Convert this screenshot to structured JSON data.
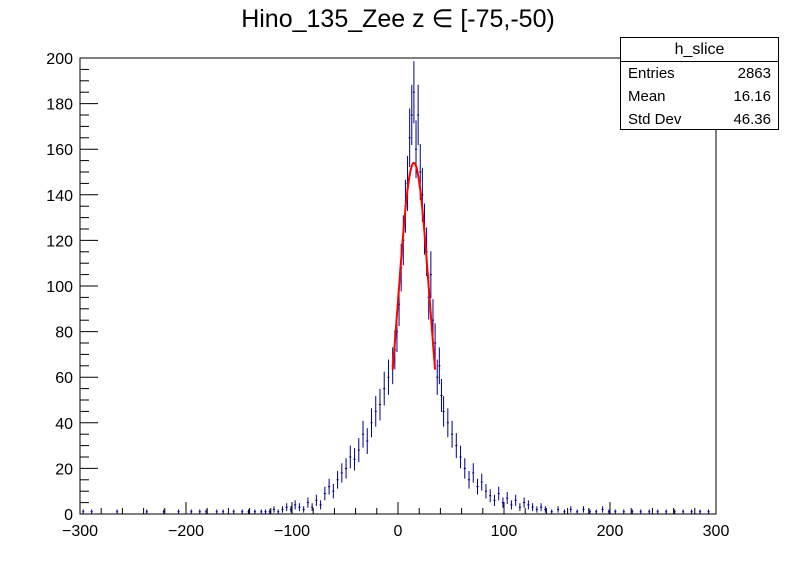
{
  "chart_data": {
    "type": "histogram",
    "title": "Hino_135_Zee z  ∈ [-75,-50)",
    "xlabel": "",
    "ylabel": "",
    "xlim": [
      -300,
      300
    ],
    "ylim": [
      0,
      200
    ],
    "x_ticks": [
      -300,
      -200,
      -100,
      0,
      100,
      200,
      300
    ],
    "y_ticks": [
      0,
      20,
      40,
      60,
      80,
      100,
      120,
      140,
      160,
      180,
      200
    ],
    "grid": false,
    "colors": {
      "histogram": "#000080",
      "fit": "#ff0000"
    },
    "bin_width": 2,
    "fit": {
      "type": "gaussian",
      "amplitude": 154,
      "mean": 15,
      "sigma": 15,
      "x_range": [
        -5,
        35
      ]
    },
    "bins": [
      {
        "x": -297,
        "y": 1
      },
      {
        "x": -289,
        "y": 1
      },
      {
        "x": -265,
        "y": 1
      },
      {
        "x": -237,
        "y": 1
      },
      {
        "x": -221,
        "y": 1
      },
      {
        "x": -207,
        "y": 1
      },
      {
        "x": -195,
        "y": 1
      },
      {
        "x": -187,
        "y": 1
      },
      {
        "x": -181,
        "y": 1
      },
      {
        "x": -171,
        "y": 1
      },
      {
        "x": -165,
        "y": 1
      },
      {
        "x": -155,
        "y": 1
      },
      {
        "x": -147,
        "y": 1
      },
      {
        "x": -141,
        "y": 1
      },
      {
        "x": -135,
        "y": 1
      },
      {
        "x": -129,
        "y": 1
      },
      {
        "x": -125,
        "y": 1
      },
      {
        "x": -121,
        "y": 1
      },
      {
        "x": -117,
        "y": 2
      },
      {
        "x": -113,
        "y": 1
      },
      {
        "x": -109,
        "y": 2
      },
      {
        "x": -105,
        "y": 3
      },
      {
        "x": -101,
        "y": 2
      },
      {
        "x": -97,
        "y": 4
      },
      {
        "x": -93,
        "y": 3
      },
      {
        "x": -89,
        "y": 2
      },
      {
        "x": -85,
        "y": 5
      },
      {
        "x": -81,
        "y": 3
      },
      {
        "x": -77,
        "y": 6
      },
      {
        "x": -73,
        "y": 4
      },
      {
        "x": -69,
        "y": 9
      },
      {
        "x": -65,
        "y": 12
      },
      {
        "x": -61,
        "y": 10
      },
      {
        "x": -57,
        "y": 15
      },
      {
        "x": -53,
        "y": 18
      },
      {
        "x": -49,
        "y": 20
      },
      {
        "x": -45,
        "y": 25
      },
      {
        "x": -41,
        "y": 24
      },
      {
        "x": -37,
        "y": 28
      },
      {
        "x": -33,
        "y": 35
      },
      {
        "x": -29,
        "y": 32
      },
      {
        "x": -25,
        "y": 40
      },
      {
        "x": -21,
        "y": 45
      },
      {
        "x": -17,
        "y": 48
      },
      {
        "x": -13,
        "y": 55
      },
      {
        "x": -9,
        "y": 60
      },
      {
        "x": -5,
        "y": 65
      },
      {
        "x": -3,
        "y": 72
      },
      {
        "x": -1,
        "y": 80
      },
      {
        "x": 1,
        "y": 92
      },
      {
        "x": 3,
        "y": 108
      },
      {
        "x": 5,
        "y": 120
      },
      {
        "x": 7,
        "y": 135
      },
      {
        "x": 9,
        "y": 145
      },
      {
        "x": 11,
        "y": 165
      },
      {
        "x": 13,
        "y": 175
      },
      {
        "x": 15,
        "y": 185
      },
      {
        "x": 17,
        "y": 160
      },
      {
        "x": 19,
        "y": 175
      },
      {
        "x": 21,
        "y": 150
      },
      {
        "x": 23,
        "y": 140
      },
      {
        "x": 25,
        "y": 125
      },
      {
        "x": 27,
        "y": 115
      },
      {
        "x": 29,
        "y": 95
      },
      {
        "x": 31,
        "y": 105
      },
      {
        "x": 33,
        "y": 85
      },
      {
        "x": 35,
        "y": 75
      },
      {
        "x": 37,
        "y": 60
      },
      {
        "x": 39,
        "y": 65
      },
      {
        "x": 41,
        "y": 52
      },
      {
        "x": 43,
        "y": 45
      },
      {
        "x": 47,
        "y": 40
      },
      {
        "x": 51,
        "y": 35
      },
      {
        "x": 55,
        "y": 30
      },
      {
        "x": 59,
        "y": 25
      },
      {
        "x": 63,
        "y": 20
      },
      {
        "x": 67,
        "y": 15
      },
      {
        "x": 71,
        "y": 18
      },
      {
        "x": 75,
        "y": 12
      },
      {
        "x": 79,
        "y": 14
      },
      {
        "x": 83,
        "y": 10
      },
      {
        "x": 87,
        "y": 8
      },
      {
        "x": 91,
        "y": 6
      },
      {
        "x": 95,
        "y": 9
      },
      {
        "x": 99,
        "y": 5
      },
      {
        "x": 103,
        "y": 7
      },
      {
        "x": 107,
        "y": 4
      },
      {
        "x": 111,
        "y": 6
      },
      {
        "x": 115,
        "y": 3
      },
      {
        "x": 119,
        "y": 5
      },
      {
        "x": 123,
        "y": 4
      },
      {
        "x": 127,
        "y": 3
      },
      {
        "x": 131,
        "y": 2
      },
      {
        "x": 135,
        "y": 3
      },
      {
        "x": 139,
        "y": 2
      },
      {
        "x": 145,
        "y": 1
      },
      {
        "x": 151,
        "y": 2
      },
      {
        "x": 157,
        "y": 1
      },
      {
        "x": 163,
        "y": 2
      },
      {
        "x": 169,
        "y": 1
      },
      {
        "x": 175,
        "y": 2
      },
      {
        "x": 181,
        "y": 1
      },
      {
        "x": 187,
        "y": 1
      },
      {
        "x": 193,
        "y": 2
      },
      {
        "x": 199,
        "y": 1
      },
      {
        "x": 205,
        "y": 1
      },
      {
        "x": 213,
        "y": 1
      },
      {
        "x": 221,
        "y": 1
      },
      {
        "x": 229,
        "y": 1
      },
      {
        "x": 237,
        "y": 1
      },
      {
        "x": 245,
        "y": 1
      },
      {
        "x": 253,
        "y": 1
      },
      {
        "x": 261,
        "y": 1
      },
      {
        "x": 269,
        "y": 1
      },
      {
        "x": 277,
        "y": 1
      },
      {
        "x": 285,
        "y": 1
      },
      {
        "x": 293,
        "y": 1
      }
    ]
  },
  "stats": {
    "name": "h_slice",
    "entries_label": "Entries",
    "entries_value": "2863",
    "mean_label": "Mean",
    "mean_value": "16.16",
    "stddev_label": "Std Dev",
    "stddev_value": "46.36"
  }
}
